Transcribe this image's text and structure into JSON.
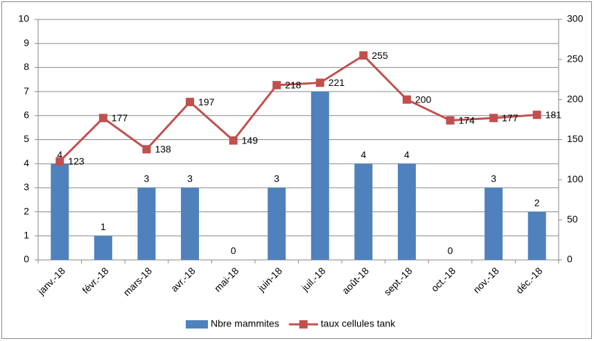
{
  "chart_data": {
    "type": "combo",
    "categories": [
      "janv.-18",
      "févr.-18",
      "mars-18",
      "avr.-18",
      "mai-18",
      "juin-18",
      "juil.-18",
      "août-18",
      "sept.-18",
      "oct.-18",
      "nov.-18",
      "déc.-18"
    ],
    "series": [
      {
        "name": "Nbre mammites",
        "type": "bar",
        "color": "#4f81bd",
        "values": [
          4,
          1,
          3,
          3,
          0,
          3,
          7,
          4,
          4,
          0,
          3,
          2
        ]
      },
      {
        "name": "taux cellules tank",
        "type": "line",
        "axis": "y2",
        "color": "#c0504d",
        "values": [
          123,
          177,
          138,
          197,
          149,
          218,
          221,
          255,
          200,
          174,
          177,
          181
        ]
      }
    ],
    "ylim": [
      0,
      10
    ],
    "yticks": [
      0,
      1,
      2,
      3,
      4,
      5,
      6,
      7,
      8,
      9,
      10
    ],
    "y2lim": [
      0,
      300
    ],
    "y2ticks": [
      0,
      50,
      100,
      150,
      200,
      250,
      300
    ],
    "grid": true,
    "legend": "bottom"
  }
}
